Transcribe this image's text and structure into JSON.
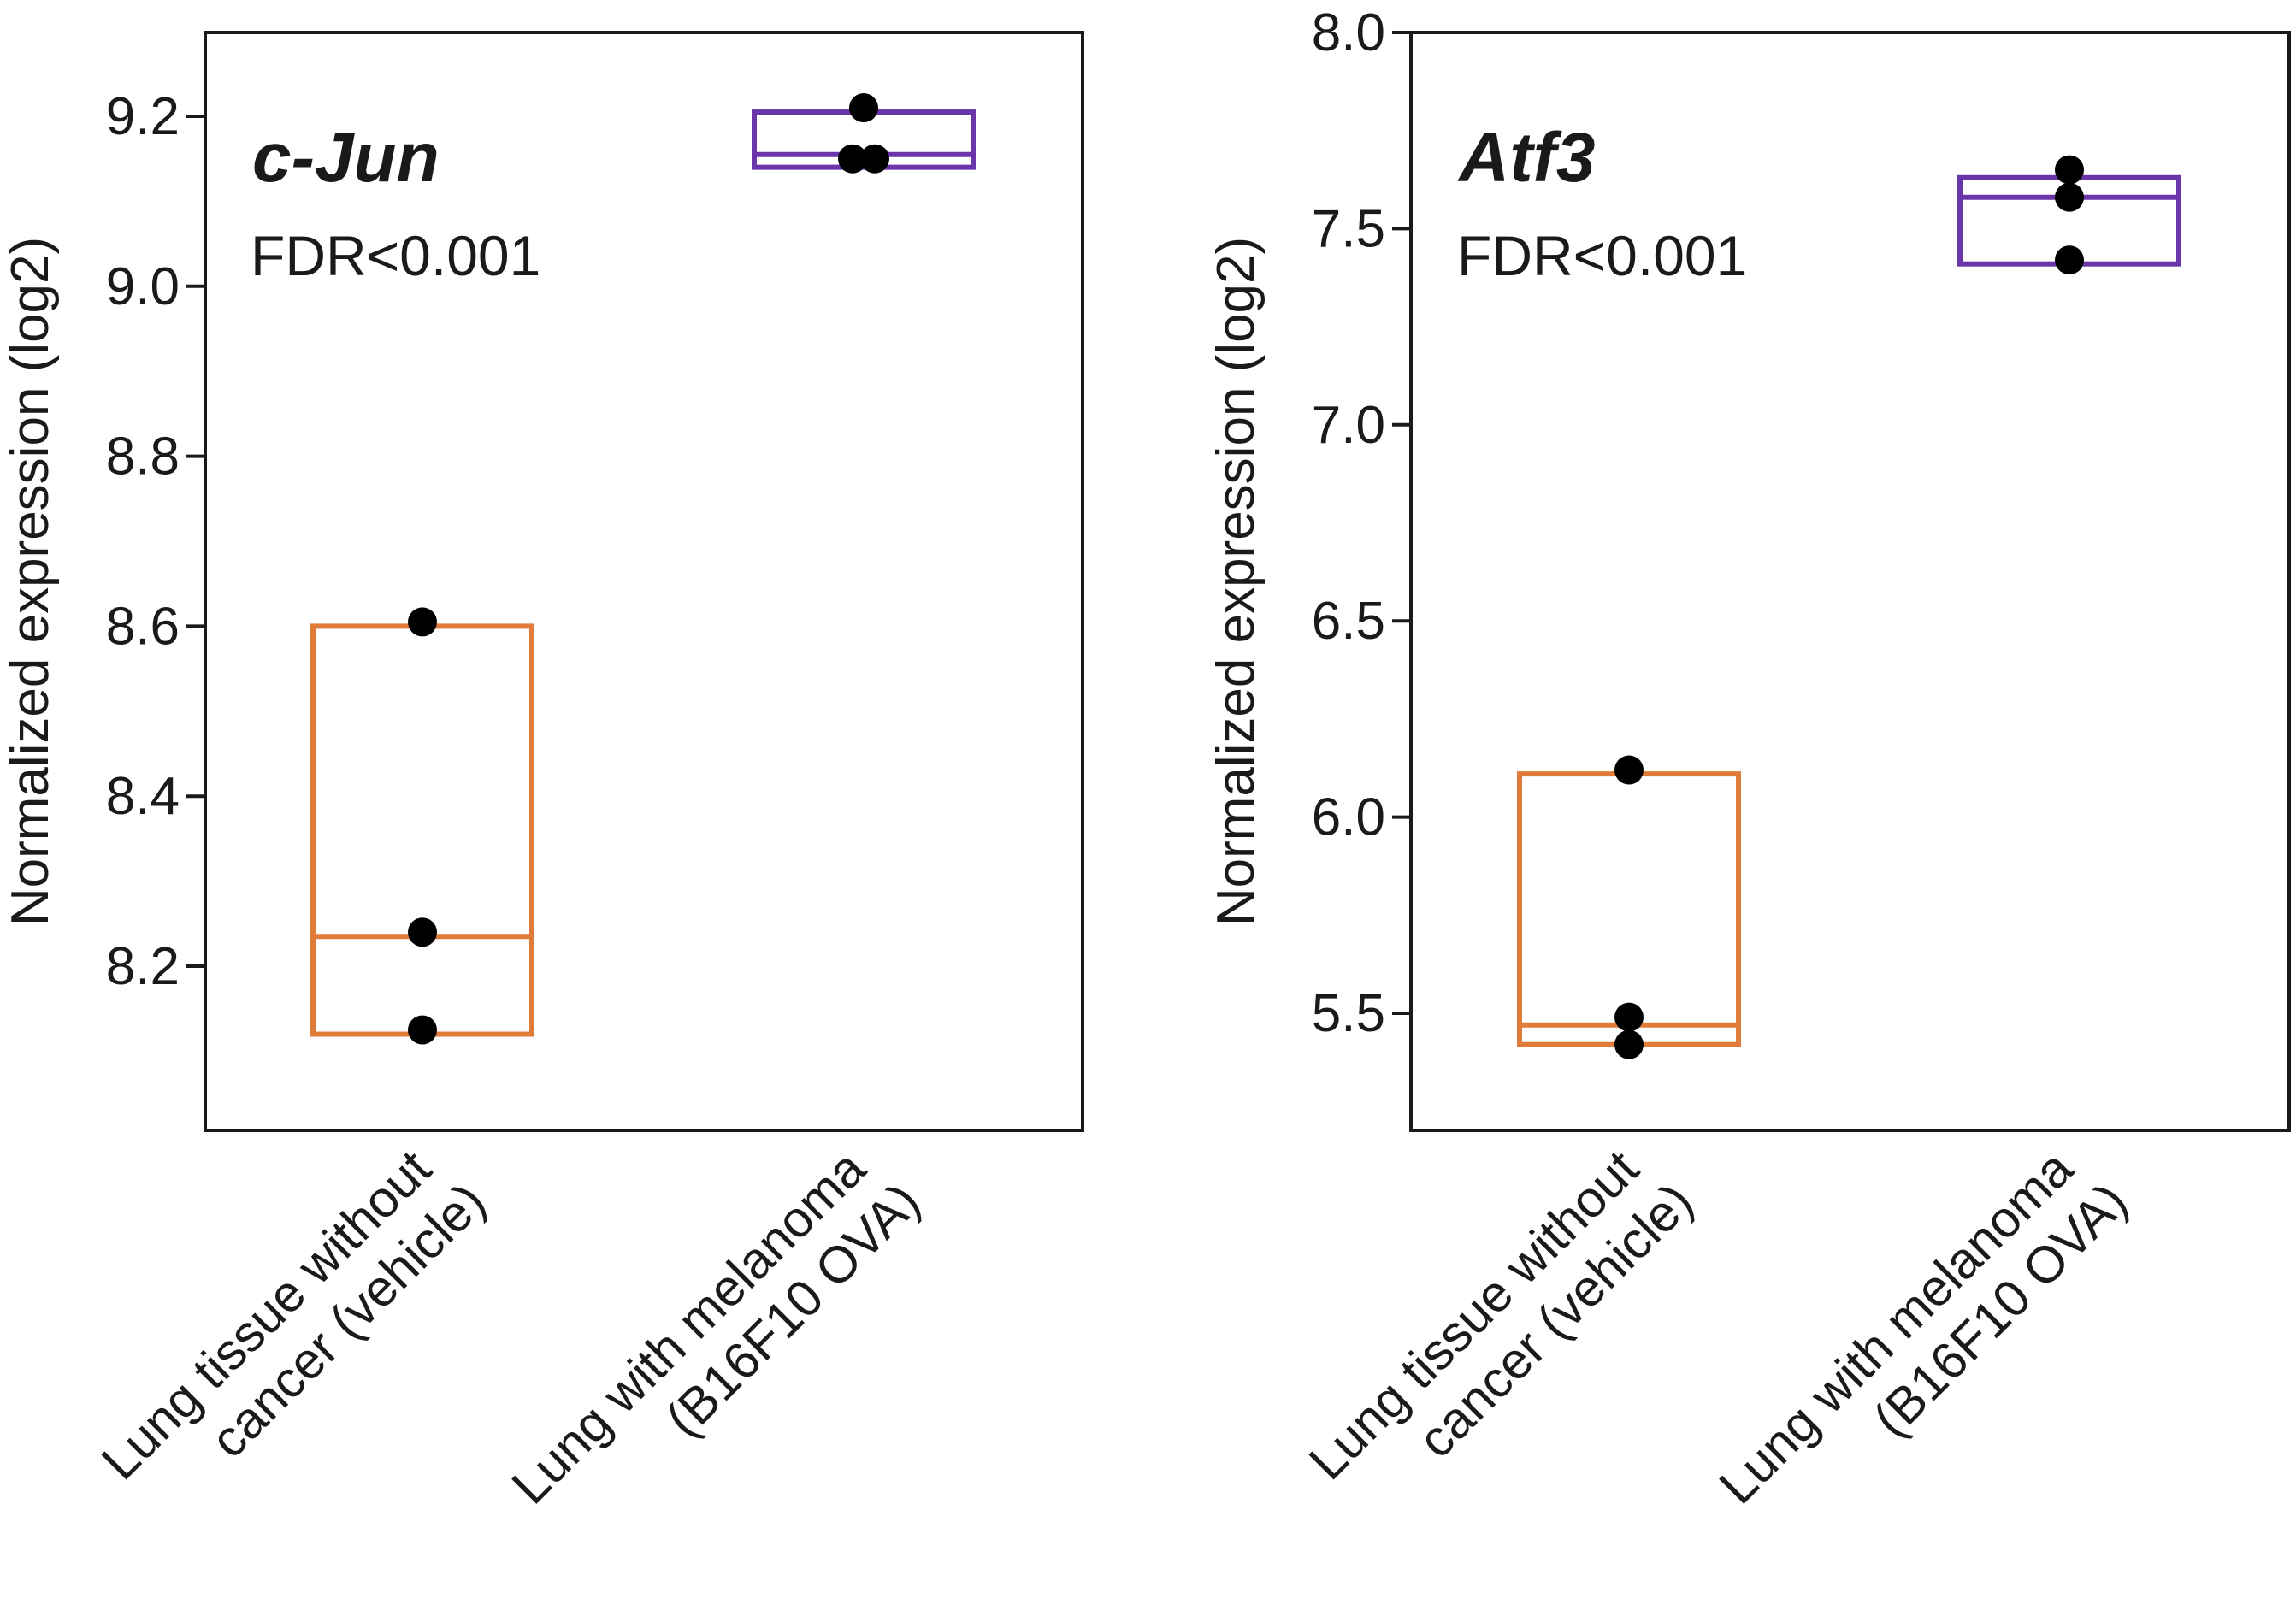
{
  "chart_data": [
    {
      "type": "box",
      "title": "c-Jun",
      "annotation": "FDR<0.001",
      "ylabel": "Normalized expression (log2)",
      "ylim": [
        8.05,
        9.3
      ],
      "yticks": [
        8.2,
        8.4,
        8.6,
        8.8,
        9.0,
        9.2
      ],
      "ytick_labels": [
        "8.2",
        "8.4",
        "8.6",
        "8.8",
        "9.0",
        "9.2"
      ],
      "groups": [
        {
          "label_lines": [
            "Lung tissue without",
            "cancer (vehicle)"
          ],
          "color": "#e07b39",
          "min": 8.12,
          "median": 8.235,
          "max": 8.6,
          "points": [
            8.605,
            8.24,
            8.125
          ]
        },
        {
          "label_lines": [
            "Lung with melanoma",
            "(B16F10 OVA)"
          ],
          "color": "#6a35a8",
          "min": 9.14,
          "median": 9.155,
          "max": 9.205,
          "points": [
            9.21,
            9.15,
            9.15
          ]
        }
      ]
    },
    {
      "type": "box",
      "title": "Atf3",
      "annotation": "FDR<0.001",
      "ylabel": "Normalized expression (log2)",
      "ylim": [
        5.25,
        8.0
      ],
      "yticks": [
        5.5,
        6.0,
        6.5,
        7.0,
        7.5,
        8.0
      ],
      "ytick_labels": [
        "5.5",
        "6.0",
        "6.5",
        "7.0",
        "7.5",
        "8.0"
      ],
      "groups": [
        {
          "label_lines": [
            "Lung tissue without",
            "cancer (vehicle)"
          ],
          "color": "#e07b39",
          "min": 5.42,
          "median": 5.47,
          "max": 6.11,
          "points": [
            6.12,
            5.49,
            5.42
          ]
        },
        {
          "label_lines": [
            "Lung with melanoma",
            "(B16F10 OVA)"
          ],
          "color": "#6a35a8",
          "min": 7.41,
          "median": 7.58,
          "max": 7.63,
          "points": [
            7.65,
            7.58,
            7.42
          ]
        }
      ]
    }
  ]
}
